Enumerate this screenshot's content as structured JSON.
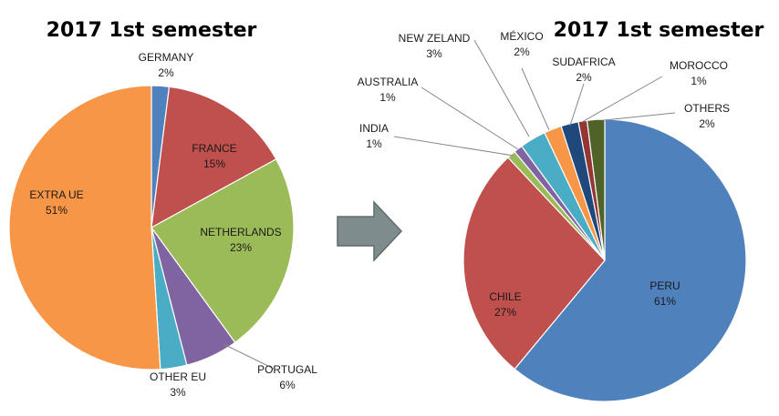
{
  "chart_data": [
    {
      "type": "pie",
      "title": "2017 1st semester",
      "start_angle_deg": 0,
      "slices": [
        {
          "label": "GERMANY",
          "value": 2,
          "value_label": "2%",
          "color": "#4f81bd"
        },
        {
          "label": "FRANCE",
          "value": 15,
          "value_label": "15%",
          "color": "#c0504d"
        },
        {
          "label": "NETHERLANDS",
          "value": 23,
          "value_label": "23%",
          "color": "#9bbb59"
        },
        {
          "label": "PORTUGAL",
          "value": 6,
          "value_label": "6%",
          "color": "#8064a2"
        },
        {
          "label": "OTHER EU",
          "value": 3,
          "value_label": "3%",
          "color": "#4bacc6"
        },
        {
          "label": "EXTRA UE",
          "value": 51,
          "value_label": "51%",
          "color": "#f79646"
        }
      ]
    },
    {
      "type": "pie",
      "title": "2017 1st semester",
      "start_angle_deg": 0,
      "slices": [
        {
          "label": "PERU",
          "value": 61,
          "value_label": "61%",
          "color": "#4f81bd"
        },
        {
          "label": "CHILE",
          "value": 27,
          "value_label": "27%",
          "color": "#c0504d"
        },
        {
          "label": "INDIA",
          "value": 1,
          "value_label": "1%",
          "color": "#9bbb59"
        },
        {
          "label": "AUSTRALIA",
          "value": 1,
          "value_label": "1%",
          "color": "#8064a2"
        },
        {
          "label": "NEW ZELAND",
          "value": 3,
          "value_label": "3%",
          "color": "#4bacc6"
        },
        {
          "label": "MÉXICO",
          "value": 2,
          "value_label": "2%",
          "color": "#f79646"
        },
        {
          "label": "SUDAFRICA",
          "value": 2,
          "value_label": "2%",
          "color": "#1f497d"
        },
        {
          "label": "MOROCCO",
          "value": 1,
          "value_label": "1%",
          "color": "#943634"
        },
        {
          "label": "OTHERS",
          "value": 2,
          "value_label": "2%",
          "color": "#4f6228"
        }
      ]
    }
  ],
  "arrow": {
    "color": "#7f8c8d",
    "icon": "right-arrow-icon"
  }
}
